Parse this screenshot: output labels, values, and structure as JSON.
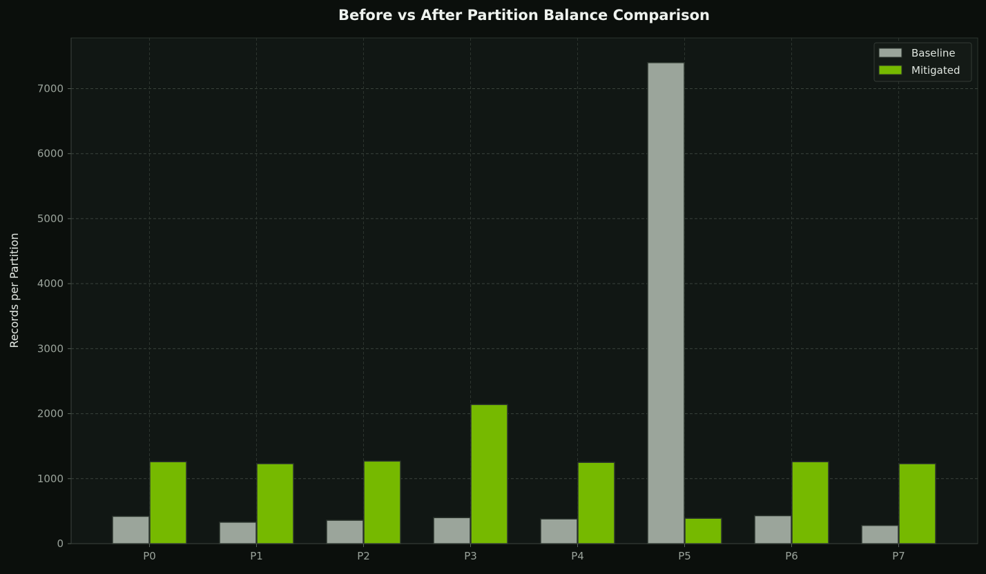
{
  "chart_data": {
    "type": "bar",
    "title": "Before vs After Partition Balance Comparison",
    "xlabel": "",
    "ylabel": "Records per Partition",
    "categories": [
      "P0",
      "P1",
      "P2",
      "P3",
      "P4",
      "P5",
      "P6",
      "P7"
    ],
    "series": [
      {
        "name": "Baseline",
        "color": "#9ba59b",
        "values": [
          420,
          330,
          360,
          400,
          380,
          7400,
          430,
          280
        ]
      },
      {
        "name": "Mitigated",
        "color": "#76b900",
        "values": [
          1260,
          1230,
          1270,
          2140,
          1250,
          390,
          1260,
          1230
        ]
      }
    ],
    "ylim": [
      0,
      7780
    ],
    "yticks": [
      0,
      1000,
      2000,
      3000,
      4000,
      5000,
      6000,
      7000
    ],
    "grid": true,
    "legend_position": "top-right"
  }
}
